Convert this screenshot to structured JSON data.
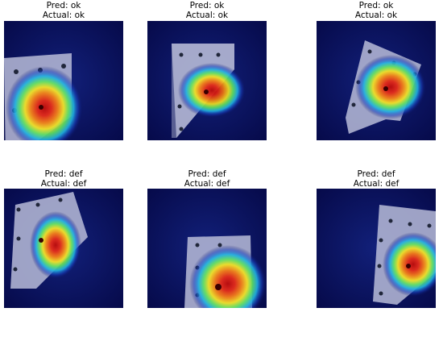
{
  "panels": [
    {
      "pred": "Pred: ok",
      "actual": "Actual: ok"
    },
    {
      "pred": "Pred: ok",
      "actual": "Actual: ok"
    },
    {
      "pred": "Pred: ok",
      "actual": "Actual: ok"
    },
    {
      "pred": "Pred: def",
      "actual": "Actual: def"
    },
    {
      "pred": "Pred: def",
      "actual": "Actual: def"
    },
    {
      "pred": "Pred: def",
      "actual": "Actual: def"
    }
  ],
  "colors": {
    "background": "#0a0f5a",
    "hot": "#d01010",
    "warm": "#f0e020",
    "cool": "#20c0e0"
  }
}
